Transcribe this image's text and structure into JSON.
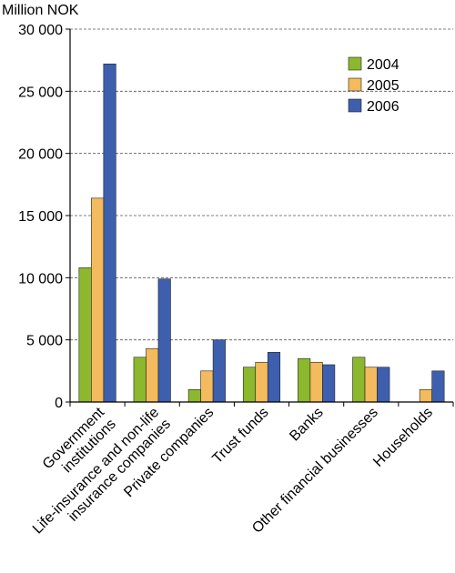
{
  "chart_data": {
    "type": "bar",
    "unit_label": "Million NOK",
    "categories": [
      [
        "Government",
        "institutions"
      ],
      [
        "Life-insurance and non-life",
        "insurance companies"
      ],
      [
        "Private companies"
      ],
      [
        "Trust funds"
      ],
      [
        "Banks"
      ],
      [
        "Other financial businesses"
      ],
      [
        "Households"
      ]
    ],
    "series": [
      {
        "name": "2004",
        "color": "#8cb82e",
        "values": [
          10800,
          3600,
          1000,
          2800,
          3500,
          3600,
          0
        ]
      },
      {
        "name": "2005",
        "color": "#f3bb5d",
        "values": [
          16400,
          4300,
          2500,
          3200,
          3200,
          2800,
          1000
        ]
      },
      {
        "name": "2006",
        "color": "#3d5fae",
        "values": [
          27200,
          9900,
          5000,
          4000,
          3000,
          2800,
          2500
        ]
      }
    ],
    "ylim": [
      0,
      30000
    ],
    "yticks": [
      0,
      5000,
      10000,
      15000,
      20000,
      25000,
      30000
    ],
    "ytick_labels": [
      "0",
      "5 000",
      "10 000",
      "15 000",
      "20 000",
      "25 000",
      "30 000"
    ],
    "grid": true,
    "legend_position": "top-right"
  }
}
